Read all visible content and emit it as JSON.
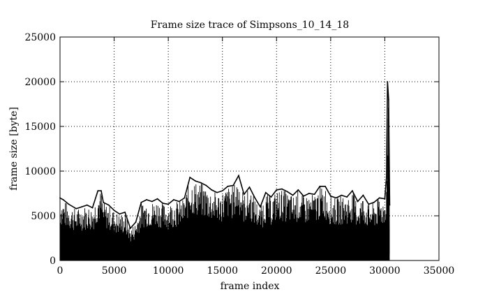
{
  "chart_data": {
    "type": "line",
    "title": "Frame size trace of Simpsons_10_14_18",
    "xlabel": "frame index",
    "ylabel": "frame size [byte]",
    "xlim": [
      0,
      35000
    ],
    "ylim": [
      0,
      25000
    ],
    "x_ticks": [
      0,
      5000,
      10000,
      15000,
      20000,
      25000,
      30000,
      35000
    ],
    "y_ticks": [
      0,
      5000,
      10000,
      15000,
      20000,
      25000
    ],
    "x_tick_labels": [
      "0",
      "5000",
      "10000",
      "15000",
      "20000",
      "25000",
      "30000",
      "35000"
    ],
    "y_tick_labels": [
      "0",
      "5000",
      "10000",
      "15000",
      "20000",
      "25000"
    ],
    "grid": true,
    "grid_style": "dotted",
    "line_color": "#000000",
    "series": [
      {
        "x": [
          0,
          300,
          800,
          1500,
          2000,
          2500,
          3000,
          3500,
          3800,
          4000,
          4500,
          5000,
          5500,
          6000,
          6500,
          7000,
          7500,
          8000,
          8500,
          9000,
          9500,
          10000,
          10500,
          11000,
          11500,
          12000,
          12500,
          13000,
          13500,
          14000,
          14500,
          15000,
          15500,
          16000,
          16500,
          17000,
          17500,
          18000,
          18500,
          19000,
          19500,
          20000,
          20500,
          21000,
          21500,
          22000,
          22500,
          23000,
          23500,
          24000,
          24500,
          25000,
          25500,
          26000,
          26500,
          27000,
          27500,
          28000,
          28500,
          29000,
          29500,
          30000,
          30150,
          30250,
          30350,
          30450
        ],
        "y": [
          7000,
          6800,
          6300,
          5800,
          6000,
          6200,
          5900,
          7800,
          7800,
          6500,
          6200,
          5600,
          5200,
          5400,
          3600,
          4300,
          6500,
          6800,
          6600,
          6900,
          6400,
          6300,
          6800,
          6600,
          7000,
          9300,
          8900,
          8700,
          8400,
          7900,
          7600,
          7800,
          8300,
          8400,
          9500,
          7400,
          8200,
          7000,
          6000,
          7600,
          7100,
          7900,
          8000,
          7700,
          7300,
          7900,
          7200,
          7500,
          7400,
          8300,
          8300,
          7200,
          7000,
          7300,
          7100,
          7800,
          6600,
          7300,
          6300,
          6500,
          7000,
          6900,
          9300,
          20000,
          18000,
          6200
        ]
      }
    ]
  }
}
